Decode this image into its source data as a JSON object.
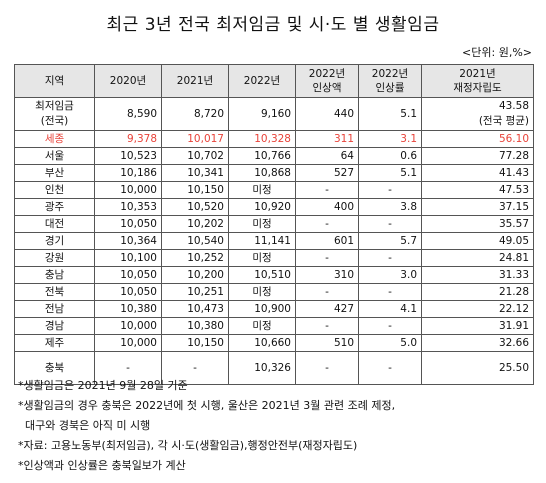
{
  "title": "최근 3년 전국 최저임금 및 시·도 별 생활임금",
  "unit": "<단위: 원,%>",
  "headers": [
    "지역",
    "2020년",
    "2021년",
    "2022년",
    "2022년\n인상액",
    "2022년\n인상률",
    "2021년\n재정자립도"
  ],
  "rows": [
    {
      "region": "최저임금\n(전국)",
      "y2020": "8,590",
      "y2021": "8,720",
      "y2022": "9,160",
      "amount": "440",
      "rate": "5.1",
      "fiscal": "43.58\n(전국 평균)"
    },
    {
      "region": "세종",
      "y2020": "9,378",
      "y2021": "10,017",
      "y2022": "10,328",
      "amount": "311",
      "rate": "3.1",
      "fiscal": "56.10",
      "highlight": true
    },
    {
      "region": "서울",
      "y2020": "10,523",
      "y2021": "10,702",
      "y2022": "10,766",
      "amount": "64",
      "rate": "0.6",
      "fiscal": "77.28"
    },
    {
      "region": "부산",
      "y2020": "10,186",
      "y2021": "10,341",
      "y2022": "10,868",
      "amount": "527",
      "rate": "5.1",
      "fiscal": "41.43"
    },
    {
      "region": "인천",
      "y2020": "10,000",
      "y2021": "10,150",
      "y2022": "미정",
      "amount": "-",
      "rate": "-",
      "fiscal": "47.53"
    },
    {
      "region": "광주",
      "y2020": "10,353",
      "y2021": "10,520",
      "y2022": "10,920",
      "amount": "400",
      "rate": "3.8",
      "fiscal": "37.15"
    },
    {
      "region": "대전",
      "y2020": "10,050",
      "y2021": "10,202",
      "y2022": "미정",
      "amount": "-",
      "rate": "-",
      "fiscal": "35.57"
    },
    {
      "region": "경기",
      "y2020": "10,364",
      "y2021": "10,540",
      "y2022": "11,141",
      "amount": "601",
      "rate": "5.7",
      "fiscal": "49.05"
    },
    {
      "region": "강원",
      "y2020": "10,100",
      "y2021": "10,252",
      "y2022": "미정",
      "amount": "-",
      "rate": "-",
      "fiscal": "24.81"
    },
    {
      "region": "충남",
      "y2020": "10,050",
      "y2021": "10,200",
      "y2022": "10,510",
      "amount": "310",
      "rate": "3.0",
      "fiscal": "31.33"
    },
    {
      "region": "전북",
      "y2020": "10,050",
      "y2021": "10,251",
      "y2022": "미정",
      "amount": "-",
      "rate": "-",
      "fiscal": "21.28"
    },
    {
      "region": "전남",
      "y2020": "10,380",
      "y2021": "10,473",
      "y2022": "10,900",
      "amount": "427",
      "rate": "4.1",
      "fiscal": "22.12"
    },
    {
      "region": "경남",
      "y2020": "10,000",
      "y2021": "10,380",
      "y2022": "미정",
      "amount": "-",
      "rate": "-",
      "fiscal": "31.91"
    },
    {
      "region": "제주",
      "y2020": "10,000",
      "y2021": "10,150",
      "y2022": "10,660",
      "amount": "510",
      "rate": "5.0",
      "fiscal": "32.66"
    },
    {
      "region": "충북",
      "y2020": "-",
      "y2021": "-",
      "y2022": "10,326",
      "amount": "-",
      "rate": "-",
      "fiscal": "25.50",
      "tall": true
    }
  ],
  "notes": [
    "*생활임금은 2021년 9월 28일 기준",
    "*생활임금의 경우 충북은 2022년에 첫 시행, 울산은 2021년 3월 관련 조례 제정,",
    "  대구와 경북은 아직 미 시행",
    "*자료: 고용노동부(최저임금), 각 시·도(생활임금),행정안전부(재정자립도)",
    "*인상액과 인상률은 충북일보가 계산"
  ]
}
